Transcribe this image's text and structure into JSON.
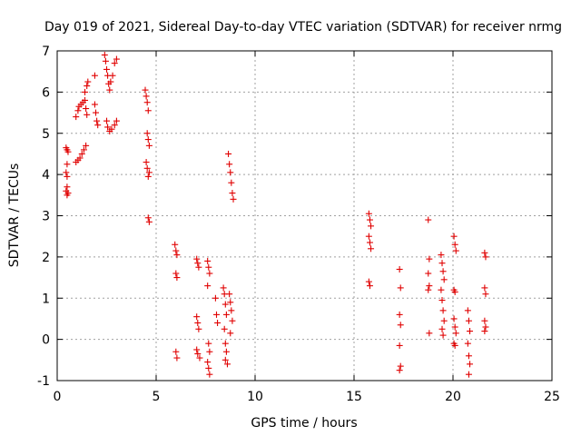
{
  "chart_data": {
    "type": "scatter",
    "title": "Day 019 of 2021, Sidereal Day-to-day VTEC variation (SDTVAR) for receiver nrmg",
    "xlabel": "GPS time / hours",
    "ylabel": "SDTVAR / TECUs",
    "xlim": [
      0,
      25
    ],
    "ylim": [
      -1,
      7
    ],
    "xticks": [
      "0",
      "5",
      "10",
      "15",
      "20",
      "25"
    ],
    "yticks": [
      "-1",
      "0",
      "1",
      "2",
      "3",
      "4",
      "5",
      "6",
      "7"
    ],
    "grid": true,
    "marker": "plus",
    "color": "#e00000",
    "series": [
      {
        "name": "SDTVAR",
        "points": [
          [
            0.45,
            4.65
          ],
          [
            0.5,
            4.6
          ],
          [
            0.55,
            4.55
          ],
          [
            0.5,
            4.25
          ],
          [
            0.45,
            4.05
          ],
          [
            0.5,
            3.95
          ],
          [
            0.5,
            3.7
          ],
          [
            0.45,
            3.6
          ],
          [
            0.55,
            3.55
          ],
          [
            0.5,
            3.5
          ],
          [
            0.95,
            4.3
          ],
          [
            1.05,
            4.35
          ],
          [
            1.15,
            4.4
          ],
          [
            1.25,
            4.5
          ],
          [
            1.35,
            4.6
          ],
          [
            1.45,
            4.7
          ],
          [
            0.95,
            5.4
          ],
          [
            1.05,
            5.55
          ],
          [
            1.1,
            5.65
          ],
          [
            1.2,
            5.7
          ],
          [
            1.3,
            5.75
          ],
          [
            1.4,
            5.8
          ],
          [
            1.45,
            5.6
          ],
          [
            1.5,
            5.45
          ],
          [
            1.4,
            6.0
          ],
          [
            1.5,
            6.15
          ],
          [
            1.55,
            6.25
          ],
          [
            1.9,
            6.4
          ],
          [
            1.9,
            5.7
          ],
          [
            1.95,
            5.5
          ],
          [
            2.0,
            5.3
          ],
          [
            2.05,
            5.2
          ],
          [
            2.4,
            6.9
          ],
          [
            2.45,
            6.75
          ],
          [
            2.5,
            6.55
          ],
          [
            2.55,
            6.4
          ],
          [
            2.6,
            6.2
          ],
          [
            2.65,
            6.05
          ],
          [
            2.7,
            6.25
          ],
          [
            2.8,
            6.4
          ],
          [
            2.9,
            6.7
          ],
          [
            3.0,
            6.8
          ],
          [
            2.5,
            5.3
          ],
          [
            2.55,
            5.15
          ],
          [
            2.65,
            5.05
          ],
          [
            2.75,
            5.1
          ],
          [
            2.9,
            5.2
          ],
          [
            3.0,
            5.3
          ],
          [
            4.45,
            6.05
          ],
          [
            4.5,
            5.9
          ],
          [
            4.55,
            5.75
          ],
          [
            4.6,
            5.55
          ],
          [
            4.55,
            5.0
          ],
          [
            4.6,
            4.85
          ],
          [
            4.65,
            4.7
          ],
          [
            4.5,
            4.3
          ],
          [
            4.55,
            4.15
          ],
          [
            4.65,
            4.05
          ],
          [
            4.6,
            3.95
          ],
          [
            4.6,
            2.95
          ],
          [
            4.65,
            2.85
          ],
          [
            5.95,
            2.3
          ],
          [
            6.0,
            2.15
          ],
          [
            6.05,
            2.05
          ],
          [
            6.0,
            1.6
          ],
          [
            6.05,
            1.5
          ],
          [
            6.0,
            -0.3
          ],
          [
            6.05,
            -0.45
          ],
          [
            7.05,
            1.95
          ],
          [
            7.1,
            1.85
          ],
          [
            7.15,
            1.75
          ],
          [
            7.05,
            0.55
          ],
          [
            7.1,
            0.4
          ],
          [
            7.15,
            0.25
          ],
          [
            7.05,
            -0.25
          ],
          [
            7.1,
            -0.35
          ],
          [
            7.2,
            -0.45
          ],
          [
            7.6,
            1.9
          ],
          [
            7.65,
            1.75
          ],
          [
            7.7,
            1.6
          ],
          [
            7.6,
            1.3
          ],
          [
            7.65,
            -0.1
          ],
          [
            7.7,
            -0.3
          ],
          [
            7.6,
            -0.55
          ],
          [
            7.65,
            -0.7
          ],
          [
            7.7,
            -0.85
          ],
          [
            8.0,
            1.0
          ],
          [
            8.05,
            0.6
          ],
          [
            8.1,
            0.4
          ],
          [
            8.4,
            1.25
          ],
          [
            8.45,
            1.1
          ],
          [
            8.5,
            0.85
          ],
          [
            8.55,
            0.6
          ],
          [
            8.45,
            0.25
          ],
          [
            8.5,
            -0.1
          ],
          [
            8.55,
            -0.3
          ],
          [
            8.5,
            -0.5
          ],
          [
            8.6,
            -0.6
          ],
          [
            8.7,
            1.1
          ],
          [
            8.75,
            0.9
          ],
          [
            8.8,
            0.7
          ],
          [
            8.85,
            0.45
          ],
          [
            8.75,
            0.15
          ],
          [
            8.65,
            4.5
          ],
          [
            8.7,
            4.25
          ],
          [
            8.75,
            4.05
          ],
          [
            8.8,
            3.8
          ],
          [
            8.85,
            3.55
          ],
          [
            8.9,
            3.4
          ],
          [
            15.75,
            3.05
          ],
          [
            15.8,
            2.9
          ],
          [
            15.85,
            2.75
          ],
          [
            15.75,
            2.5
          ],
          [
            15.8,
            2.35
          ],
          [
            15.85,
            2.2
          ],
          [
            15.75,
            1.4
          ],
          [
            15.8,
            1.3
          ],
          [
            17.3,
            1.7
          ],
          [
            17.35,
            1.25
          ],
          [
            17.3,
            0.6
          ],
          [
            17.35,
            0.35
          ],
          [
            17.3,
            -0.15
          ],
          [
            17.35,
            -0.65
          ],
          [
            17.3,
            -0.75
          ],
          [
            18.75,
            2.9
          ],
          [
            18.8,
            1.95
          ],
          [
            18.75,
            1.6
          ],
          [
            18.8,
            1.3
          ],
          [
            18.75,
            1.2
          ],
          [
            18.8,
            0.15
          ],
          [
            19.4,
            2.05
          ],
          [
            19.45,
            1.85
          ],
          [
            19.5,
            1.65
          ],
          [
            19.55,
            1.45
          ],
          [
            19.4,
            1.2
          ],
          [
            19.45,
            0.95
          ],
          [
            19.5,
            0.7
          ],
          [
            19.55,
            0.45
          ],
          [
            19.45,
            0.25
          ],
          [
            19.5,
            0.1
          ],
          [
            20.05,
            2.5
          ],
          [
            20.1,
            2.3
          ],
          [
            20.15,
            2.15
          ],
          [
            20.05,
            1.2
          ],
          [
            20.1,
            1.15
          ],
          [
            20.05,
            0.5
          ],
          [
            20.1,
            0.3
          ],
          [
            20.15,
            0.15
          ],
          [
            20.05,
            -0.1
          ],
          [
            20.1,
            -0.15
          ],
          [
            20.75,
            0.7
          ],
          [
            20.8,
            0.45
          ],
          [
            20.85,
            0.2
          ],
          [
            20.75,
            -0.1
          ],
          [
            20.8,
            -0.4
          ],
          [
            20.85,
            -0.6
          ],
          [
            20.8,
            -0.85
          ],
          [
            21.6,
            2.1
          ],
          [
            21.65,
            2.0
          ],
          [
            21.6,
            1.25
          ],
          [
            21.65,
            1.1
          ],
          [
            21.6,
            0.45
          ],
          [
            21.65,
            0.3
          ],
          [
            21.6,
            0.2
          ]
        ]
      }
    ]
  }
}
